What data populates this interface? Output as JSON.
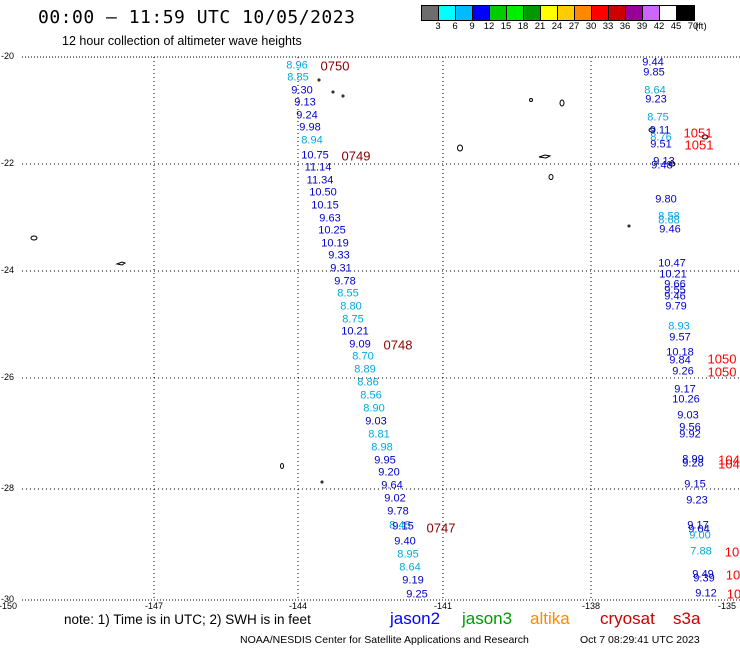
{
  "header": {
    "title": "00:00 – 11:59 UTC 10/05/2023",
    "subtitle": "12 hour collection of altimeter wave heights"
  },
  "colorbar": {
    "colors": [
      "#6d6d6d",
      "#00ffff",
      "#00bbff",
      "#0000ff",
      "#00cc00",
      "#00ee00",
      "#009900",
      "#ffff00",
      "#ffcc00",
      "#ff8800",
      "#ff0000",
      "#cc0000",
      "#990099",
      "#cc66ff",
      "#ffffff",
      "#000000"
    ],
    "labels": [
      "3",
      "6",
      "9",
      "12",
      "15",
      "18",
      "21",
      "24",
      "27",
      "30",
      "33",
      "36",
      "39",
      "42",
      "45",
      "70",
      "(ft)"
    ]
  },
  "axes": {
    "y_labels": [
      "-20",
      "-22",
      "-24",
      "-26",
      "-28",
      "-30"
    ],
    "x_labels": [
      "-150",
      "-147",
      "-144",
      "-141",
      "-138",
      "-135"
    ]
  },
  "track1": {
    "values": [
      {
        "t": "8.96",
        "c": "#00aadd"
      },
      {
        "t": "8.85",
        "c": "#00aadd"
      },
      {
        "t": "9.30",
        "c": "#0000cc"
      },
      {
        "t": "9.13",
        "c": "#0000cc"
      },
      {
        "t": "9.24",
        "c": "#0000cc"
      },
      {
        "t": "9.98",
        "c": "#0000cc"
      },
      {
        "t": "8.94",
        "c": "#00aadd"
      },
      {
        "t": "10.75",
        "c": "#0000cc"
      },
      {
        "t": "11.14",
        "c": "#0000cc"
      },
      {
        "t": "11.34",
        "c": "#0000cc"
      },
      {
        "t": "10.50",
        "c": "#0000cc"
      },
      {
        "t": "10.15",
        "c": "#0000cc"
      },
      {
        "t": "9.63",
        "c": "#0000cc"
      },
      {
        "t": "10.25",
        "c": "#0000cc"
      },
      {
        "t": "10.19",
        "c": "#0000cc"
      },
      {
        "t": "9.33",
        "c": "#0000cc"
      },
      {
        "t": "9.31",
        "c": "#0000cc"
      },
      {
        "t": "9.78",
        "c": "#0000cc"
      },
      {
        "t": "8.55",
        "c": "#00aadd"
      },
      {
        "t": "8.80",
        "c": "#00aadd"
      },
      {
        "t": "8.75",
        "c": "#00aadd"
      },
      {
        "t": "10.21",
        "c": "#0000cc"
      },
      {
        "t": "9.09",
        "c": "#0000cc"
      },
      {
        "t": "8.70",
        "c": "#00aadd"
      },
      {
        "t": "8.89",
        "c": "#00aadd"
      },
      {
        "t": "8.86",
        "c": "#00aadd"
      },
      {
        "t": "8.56",
        "c": "#00aadd"
      },
      {
        "t": "8.90",
        "c": "#00aadd"
      },
      {
        "t": "9.03",
        "c": "#0000cc"
      },
      {
        "t": "8.81",
        "c": "#00aadd"
      },
      {
        "t": "8.98",
        "c": "#00aadd"
      },
      {
        "t": "9.95",
        "c": "#0000cc"
      },
      {
        "t": "9.20",
        "c": "#0000cc"
      },
      {
        "t": "9.64",
        "c": "#0000cc"
      },
      {
        "t": "9.02",
        "c": "#0000cc"
      },
      {
        "t": "9.78",
        "c": "#0000cc"
      },
      {
        "t": "8.45",
        "c": "#00aadd"
      },
      {
        "t": "9.15",
        "c": "#0000cc"
      },
      {
        "t": "9.40",
        "c": "#0000cc"
      },
      {
        "t": "8.95",
        "c": "#00aadd"
      },
      {
        "t": "8.64",
        "c": "#00aadd"
      },
      {
        "t": "9.19",
        "c": "#0000cc"
      },
      {
        "t": "9.25",
        "c": "#0000cc"
      }
    ],
    "orbits": [
      "0750",
      "0749",
      "0748",
      "0747"
    ]
  },
  "track2": {
    "values": [
      {
        "t": "9.44",
        "c": "#0000cc"
      },
      {
        "t": "9.85",
        "c": "#0000cc"
      },
      {
        "t": "8.64",
        "c": "#00aadd"
      },
      {
        "t": "9.23",
        "c": "#0000cc"
      },
      {
        "t": "8.75",
        "c": "#00aadd"
      },
      {
        "t": "9.11",
        "c": "#0000cc"
      },
      {
        "t": "8.76",
        "c": "#00aadd"
      },
      {
        "t": "9.51",
        "c": "#0000cc"
      },
      {
        "t": "9.13",
        "c": "#0000cc"
      },
      {
        "t": "9.48",
        "c": "#0000cc"
      },
      {
        "t": "9.80",
        "c": "#0000cc"
      },
      {
        "t": "8.58",
        "c": "#00aadd"
      },
      {
        "t": "8.68",
        "c": "#00aadd"
      },
      {
        "t": "9.46",
        "c": "#0000cc"
      },
      {
        "t": "10.47",
        "c": "#0000cc"
      },
      {
        "t": "10.21",
        "c": "#0000cc"
      },
      {
        "t": "9.66",
        "c": "#0000cc"
      },
      {
        "t": "9.55",
        "c": "#0000cc"
      },
      {
        "t": "9.46",
        "c": "#0000cc"
      },
      {
        "t": "9.79",
        "c": "#0000cc"
      },
      {
        "t": "8.93",
        "c": "#00aadd"
      },
      {
        "t": "9.57",
        "c": "#0000cc"
      },
      {
        "t": "10.18",
        "c": "#0000cc"
      },
      {
        "t": "9.84",
        "c": "#0000cc"
      },
      {
        "t": "9.26",
        "c": "#0000cc"
      },
      {
        "t": "9.17",
        "c": "#0000cc"
      },
      {
        "t": "10.26",
        "c": "#0000cc"
      },
      {
        "t": "9.03",
        "c": "#0000cc"
      },
      {
        "t": "9.56",
        "c": "#0000cc"
      },
      {
        "t": "9.92",
        "c": "#0000cc"
      },
      {
        "t": "8.99",
        "c": "#0000cc"
      },
      {
        "t": "9.28",
        "c": "#0000cc"
      },
      {
        "t": "9.15",
        "c": "#0000cc"
      },
      {
        "t": "9.23",
        "c": "#0000cc"
      },
      {
        "t": "9.17",
        "c": "#0000cc"
      },
      {
        "t": "9.04",
        "c": "#0000cc"
      },
      {
        "t": "9.00",
        "c": "#00aadd"
      },
      {
        "t": "7.88",
        "c": "#00aadd"
      },
      {
        "t": "9.49",
        "c": "#0000cc"
      },
      {
        "t": "9.39",
        "c": "#0000cc"
      },
      {
        "t": "9.12",
        "c": "#0000cc"
      }
    ],
    "orbits": [
      "1051",
      "1051",
      "1050",
      "1050",
      "104",
      "104",
      "10",
      "10",
      "10"
    ]
  },
  "footer": {
    "note": "note:  1) Time is in UTC;  2) SWH is in feet",
    "legend": [
      {
        "name": "jason2",
        "color": "#0000ff"
      },
      {
        "name": "jason3",
        "color": "#009900"
      },
      {
        "name": "altika",
        "color": "#ff8800"
      },
      {
        "name": "cryosat",
        "color": "#cc0000"
      },
      {
        "name": "s3a",
        "color": "#cc0000"
      }
    ],
    "credit": "NOAA/NESDIS Center for Satellite Applications and Research",
    "timestamp": "Oct  7 08:29:41 UTC 2023"
  }
}
